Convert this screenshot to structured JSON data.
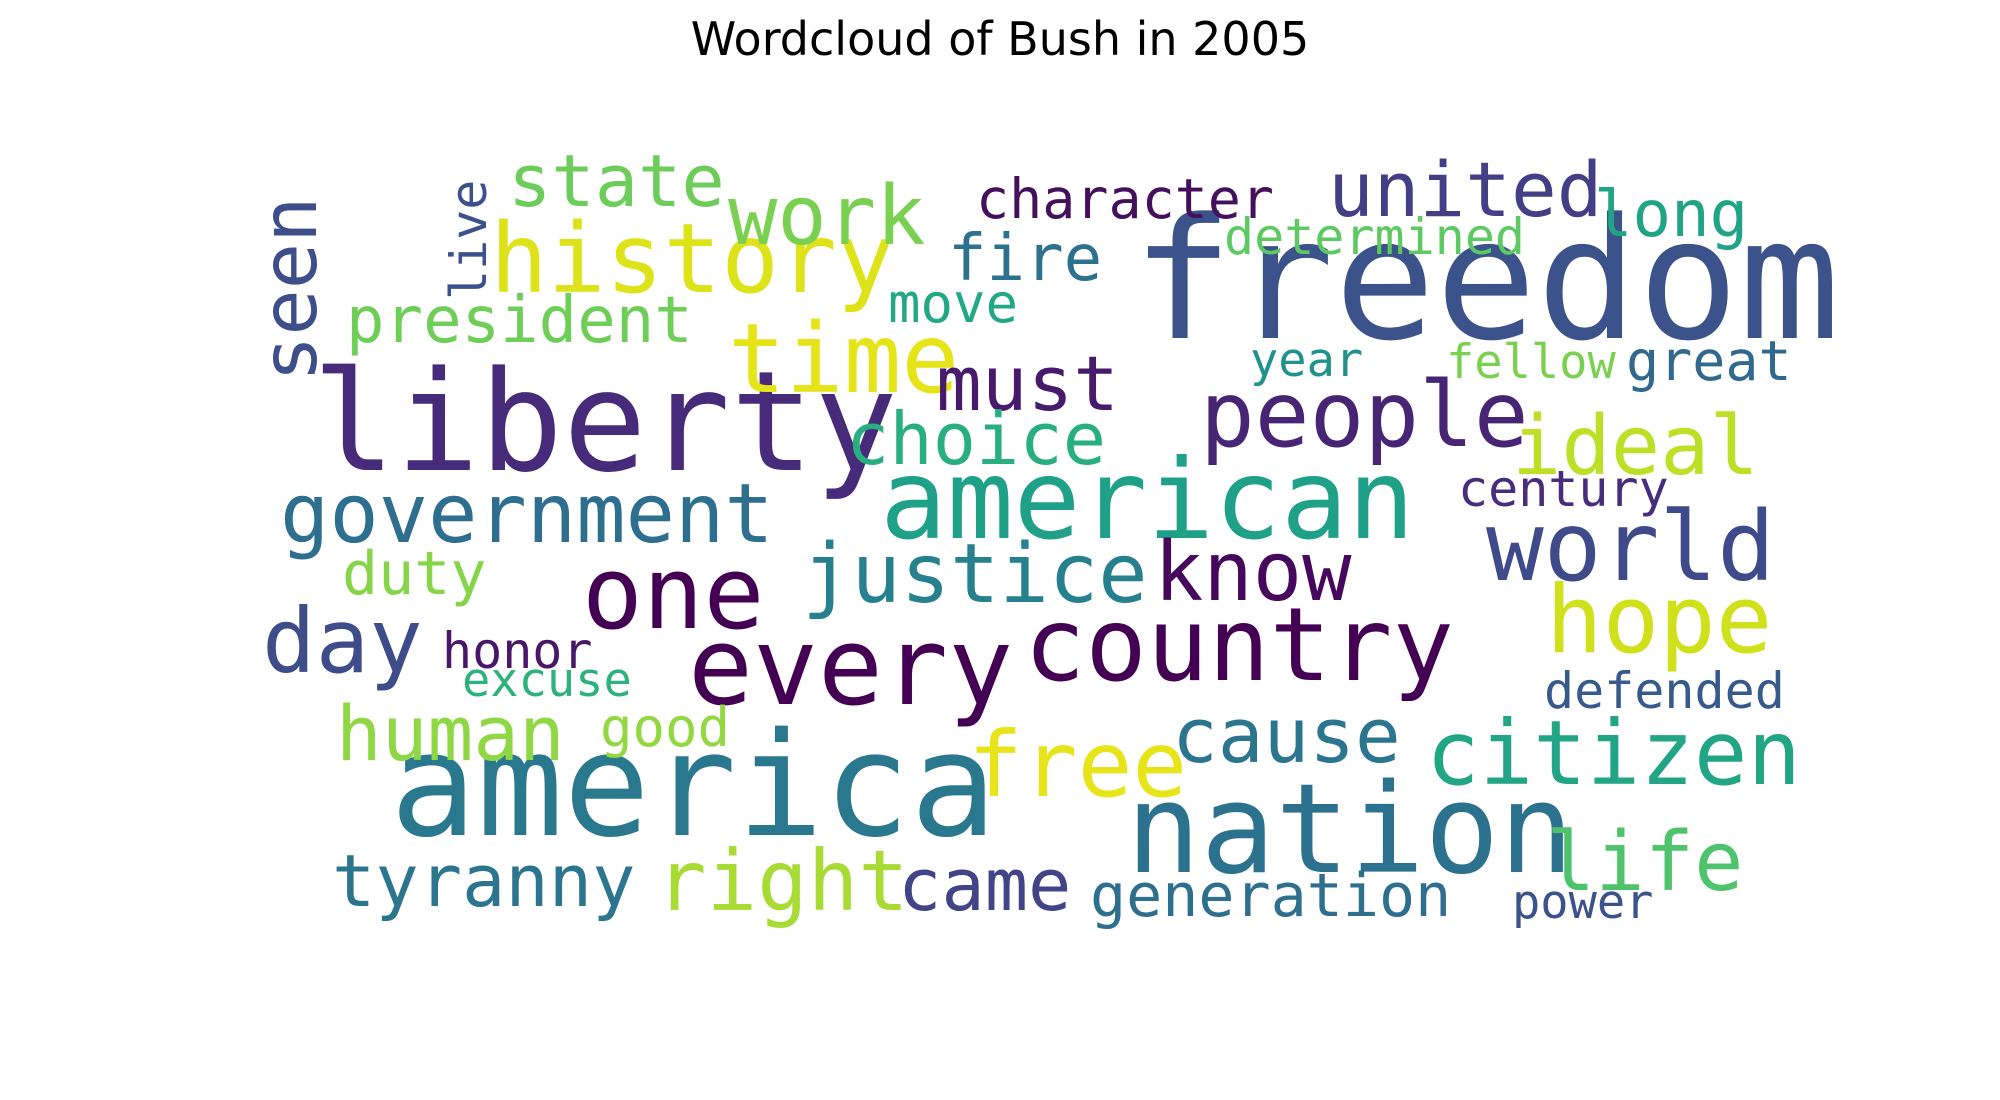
{
  "chart_data": {
    "type": "wordcloud",
    "title": "Wordcloud of Bush in 2005",
    "words": [
      {
        "text": "freedom",
        "weight": 1.0,
        "color": "#3b528b"
      },
      {
        "text": "liberty",
        "weight": 0.83,
        "color": "#472a7a"
      },
      {
        "text": "america",
        "weight": 0.86,
        "color": "#2a788e"
      },
      {
        "text": "american",
        "weight": 0.66,
        "color": "#1fa088"
      },
      {
        "text": "nation",
        "weight": 0.74,
        "color": "#2c728e"
      },
      {
        "text": "every",
        "weight": 0.64,
        "color": "#440154"
      },
      {
        "text": "country",
        "weight": 0.61,
        "color": "#440154"
      },
      {
        "text": "one",
        "weight": 0.6,
        "color": "#440154"
      },
      {
        "text": "history",
        "weight": 0.57,
        "color": "#dde318"
      },
      {
        "text": "time",
        "weight": 0.57,
        "color": "#e5e419"
      },
      {
        "text": "people",
        "weight": 0.54,
        "color": "#482475"
      },
      {
        "text": "world",
        "weight": 0.57,
        "color": "#3e4a89"
      },
      {
        "text": "hope",
        "weight": 0.56,
        "color": "#d0e11c"
      },
      {
        "text": "citizen",
        "weight": 0.53,
        "color": "#21a585"
      },
      {
        "text": "free",
        "weight": 0.54,
        "color": "#e7e419"
      },
      {
        "text": "right",
        "weight": 0.5,
        "color": "#a8db34"
      },
      {
        "text": "day",
        "weight": 0.53,
        "color": "#3e4c8a"
      },
      {
        "text": "government",
        "weight": 0.49,
        "color": "#2e6e8e"
      },
      {
        "text": "justice",
        "weight": 0.49,
        "color": "#27808e"
      },
      {
        "text": "know",
        "weight": 0.49,
        "color": "#46085c"
      },
      {
        "text": "work",
        "weight": 0.49,
        "color": "#7ad151"
      },
      {
        "text": "ideal",
        "weight": 0.49,
        "color": "#bddf26"
      },
      {
        "text": "life",
        "weight": 0.49,
        "color": "#4ec36b"
      },
      {
        "text": "seen",
        "weight": 0.46,
        "color": "#3d4e8a"
      },
      {
        "text": "must",
        "weight": 0.45,
        "color": "#481a6c"
      },
      {
        "text": "united",
        "weight": 0.45,
        "color": "#433e85"
      },
      {
        "text": "cause",
        "weight": 0.45,
        "color": "#2b758e"
      },
      {
        "text": "human",
        "weight": 0.45,
        "color": "#8fd744"
      },
      {
        "text": "tyranny",
        "weight": 0.43,
        "color": "#2b758e"
      },
      {
        "text": "came",
        "weight": 0.43,
        "color": "#414487"
      },
      {
        "text": "choice",
        "weight": 0.43,
        "color": "#29af7f"
      },
      {
        "text": "state",
        "weight": 0.43,
        "color": "#6ccd5a"
      },
      {
        "text": "president",
        "weight": 0.38,
        "color": "#6ece58"
      },
      {
        "text": "long",
        "weight": 0.38,
        "color": "#20a386"
      },
      {
        "text": "fire",
        "weight": 0.38,
        "color": "#2c718e"
      },
      {
        "text": "duty",
        "weight": 0.36,
        "color": "#86d549"
      },
      {
        "text": "generation",
        "weight": 0.36,
        "color": "#2e6f8e"
      },
      {
        "text": "character",
        "weight": 0.33,
        "color": "#440f5b"
      },
      {
        "text": "great",
        "weight": 0.33,
        "color": "#31688e"
      },
      {
        "text": "move",
        "weight": 0.32,
        "color": "#22a884"
      },
      {
        "text": "good",
        "weight": 0.32,
        "color": "#93d741"
      },
      {
        "text": "honor",
        "weight": 0.3,
        "color": "#481769"
      },
      {
        "text": "defended",
        "weight": 0.3,
        "color": "#375a8c"
      },
      {
        "text": "century",
        "weight": 0.3,
        "color": "#472d7b"
      },
      {
        "text": "live",
        "weight": 0.3,
        "color": "#3b518b"
      },
      {
        "text": "determined",
        "weight": 0.3,
        "color": "#5ec962"
      },
      {
        "text": "year",
        "weight": 0.28,
        "color": "#21918c"
      },
      {
        "text": "fellow",
        "weight": 0.28,
        "color": "#7ad151"
      },
      {
        "text": "excuse",
        "weight": 0.28,
        "color": "#2db27d"
      },
      {
        "text": "power",
        "weight": 0.28,
        "color": "#3b528b"
      }
    ]
  }
}
